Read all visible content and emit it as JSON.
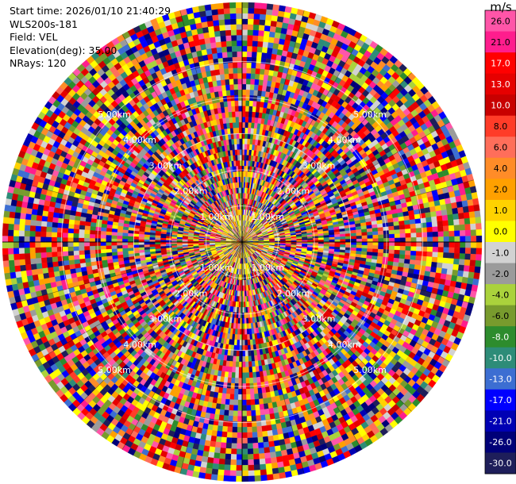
{
  "info": {
    "start_time": "Start time: 2026/01/10 21:40:29",
    "instrument": "WLS200s-181",
    "field": "Field: VEL",
    "elevation": "Elevation(deg): 35.00",
    "nrays": "NRays: 120"
  },
  "colorbar": {
    "unit": "m/s",
    "ticks": [
      "26.0",
      "21.0",
      "17.0",
      "13.0",
      "10.0",
      "8.0",
      "6.0",
      "4.0",
      "2.0",
      "1.0",
      "0.0",
      "-1.0",
      "-2.0",
      "-4.0",
      "-6.0",
      "-8.0",
      "-10.0",
      "-13.0",
      "-17.0",
      "-21.0",
      "-26.0",
      "-30.0"
    ],
    "colors": [
      "#ff55a8",
      "#ff1d8d",
      "#ff0000",
      "#e60000",
      "#c80000",
      "#ff3c28",
      "#ff6e5a",
      "#ff8c28",
      "#ffa000",
      "#ffd200",
      "#ffff00",
      "#d2d2d2",
      "#9b9b9b",
      "#aad23c",
      "#789b2d",
      "#2d8c2d",
      "#2d8c78",
      "#3c6ed2",
      "#0000ff",
      "#0000b4",
      "#000078",
      "#1e1e5a"
    ]
  },
  "chart_data": {
    "type": "heatmap",
    "subtype": "radar PPI (polar)",
    "field": "VEL",
    "units": "m/s",
    "nrays": 120,
    "elevation_deg": 35.0,
    "range_rings_km": [
      1,
      2,
      3,
      4,
      5
    ],
    "range_ring_labels": [
      "1.00km",
      "2.00km",
      "3.00km",
      "4.00km",
      "5.00km"
    ],
    "value_range": [
      -30,
      30
    ],
    "note": "Individual gate values are noise-like and not individually legible."
  }
}
